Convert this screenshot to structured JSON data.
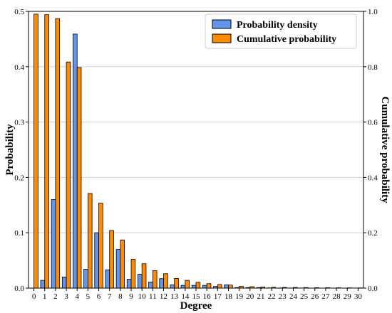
{
  "chart_data": {
    "type": "bar",
    "xlabel": "Degree",
    "ylabel": "Probability",
    "ylabel_right": "Cumulative probability",
    "ylim": [
      0,
      0.5
    ],
    "ylim_right": [
      0,
      1.0
    ],
    "y_ticks": [
      "0.0",
      "0.1",
      "0.2",
      "0.3",
      "0.4",
      "0.5"
    ],
    "y_ticks_right": [
      "0.0",
      "0.2",
      "0.4",
      "0.6",
      "0.8",
      "1.0"
    ],
    "grid": "horizontal",
    "legend_position": "top-right",
    "categories": [
      "0",
      "1",
      "2",
      "3",
      "4",
      "5",
      "6",
      "7",
      "8",
      "9",
      "10",
      "11",
      "12",
      "13",
      "14",
      "15",
      "16",
      "17",
      "18",
      "19",
      "20",
      "21",
      "22",
      "23",
      "24",
      "25",
      "26",
      "27",
      "28",
      "29",
      "30"
    ],
    "series": [
      {
        "name": "Probability density",
        "color": "#6495ED",
        "axis": "left",
        "values": [
          0.0,
          0.014,
          0.16,
          0.02,
          0.459,
          0.034,
          0.1,
          0.033,
          0.07,
          0.016,
          0.025,
          0.011,
          0.017,
          0.006,
          0.005,
          0.005,
          0.005,
          0.003,
          0.006,
          0.001,
          0.001,
          0.001,
          0.0004,
          0.0003,
          0.0002,
          0.0002,
          0.0001,
          0.0001,
          0.0001,
          0.0001,
          0.0001
        ]
      },
      {
        "name": "Cumulative probability",
        "color": "#FF8C00",
        "axis": "right",
        "values": [
          0.99,
          0.988,
          0.974,
          0.817,
          0.797,
          0.342,
          0.307,
          0.208,
          0.174,
          0.104,
          0.088,
          0.063,
          0.052,
          0.035,
          0.028,
          0.021,
          0.016,
          0.013,
          0.011,
          0.006,
          0.005,
          0.004,
          0.003,
          0.0025,
          0.0022,
          0.0019,
          0.0016,
          0.0014,
          0.0012,
          0.001,
          0.0008
        ]
      }
    ]
  }
}
